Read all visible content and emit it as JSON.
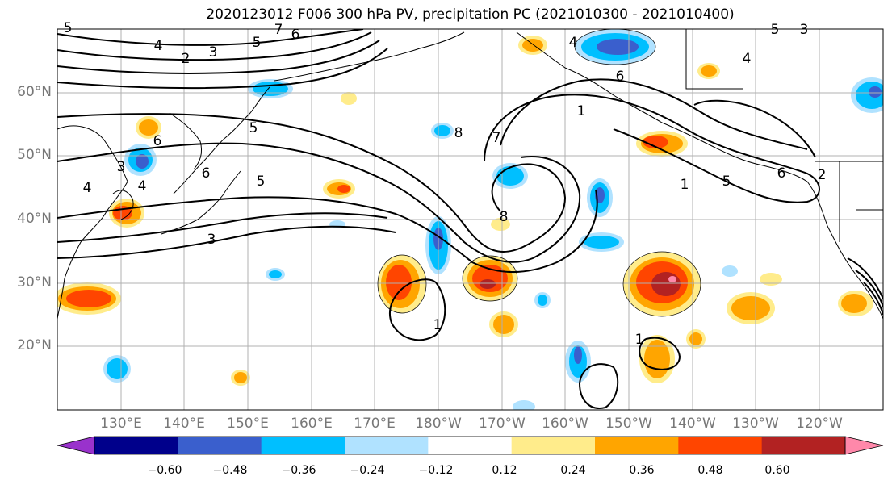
{
  "title": "2020123012 F006 300 hPa PV, precipitation PC (2021010300 - 2021010400)",
  "lat_labels": [
    "60°N",
    "50°N",
    "40°N",
    "30°N",
    "20°N"
  ],
  "lon_labels": [
    "130°E",
    "140°E",
    "150°E",
    "160°E",
    "170°E",
    "180°W",
    "170°W",
    "160°W",
    "150°W",
    "140°W",
    "130°W",
    "120°W"
  ],
  "colorbar": {
    "ticks": [
      "−0.60",
      "−0.48",
      "−0.36",
      "−0.24",
      "−0.12",
      "0.12",
      "0.24",
      "0.36",
      "0.48",
      "0.60"
    ],
    "colors": [
      "#9932cc",
      "#00008b",
      "#3a5fcd",
      "#00bfff",
      "#b0e2ff",
      "#ffffff",
      "#ffec8b",
      "#ffa500",
      "#ff4500",
      "#b22222",
      "#ff88aa"
    ]
  },
  "contour_labels": [
    "2",
    "3",
    "4",
    "5",
    "6",
    "7",
    "5",
    "4",
    "3",
    "6",
    "5",
    "3",
    "4",
    "5",
    "6",
    "1",
    "4",
    "4",
    "1",
    "5",
    "7",
    "6",
    "8",
    "8",
    "6",
    "2",
    "1",
    "1",
    "5",
    "3"
  ]
}
